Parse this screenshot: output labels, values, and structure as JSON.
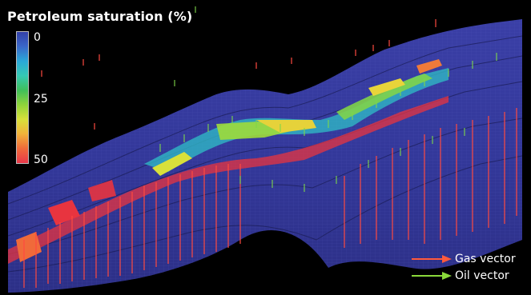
{
  "title": "Petroleum saturation (%)",
  "colorbar": {
    "ticks": [
      "0",
      "25",
      "50"
    ],
    "stops": [
      "#3340a8",
      "#3a67c8",
      "#2aa8d8",
      "#35c9b4",
      "#3fbf5a",
      "#8fd43a",
      "#d8e03a",
      "#f2b23a",
      "#f06a3a",
      "#e8384a"
    ]
  },
  "legend": [
    {
      "label": "Gas vector",
      "color": "#ff5a3c"
    },
    {
      "label": "Oil vector",
      "color": "#8ad93a"
    }
  ]
}
